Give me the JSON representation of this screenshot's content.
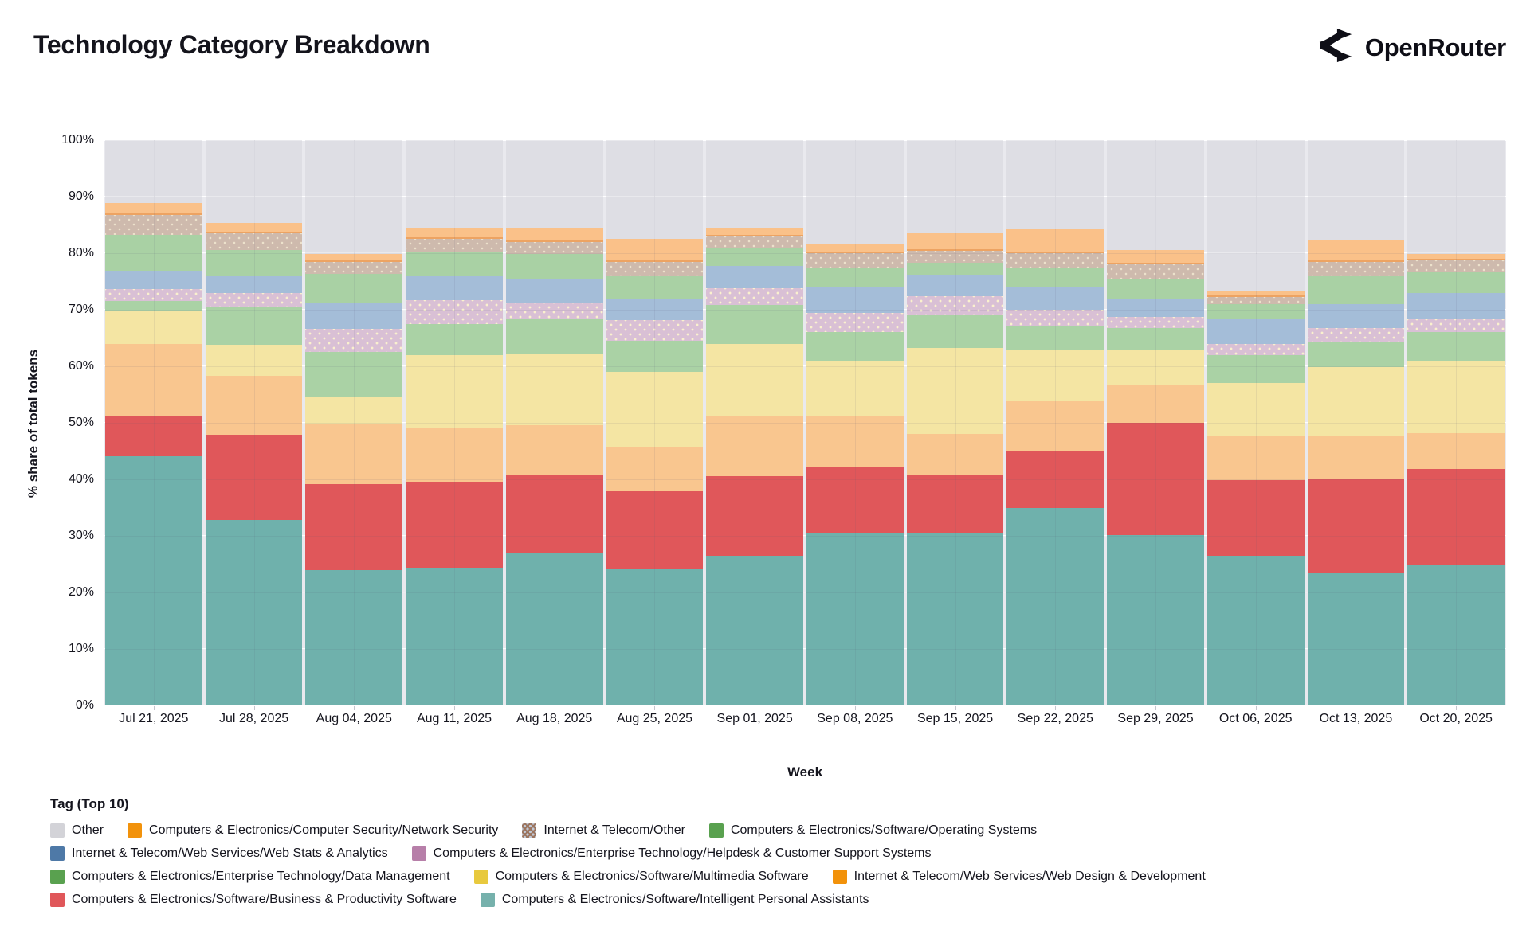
{
  "header": {
    "title": "Technology Category Breakdown",
    "brand": "OpenRouter",
    "brand_icon": "openrouter-fork-arrows",
    "brand_color": "#0e0e16"
  },
  "legend": {
    "title": "Tag (Top 10)"
  },
  "chart_data": {
    "type": "bar",
    "stacked": true,
    "orientation": "vertical",
    "title": "Technology Category Breakdown",
    "xlabel": "Week",
    "ylabel": "% share of total tokens",
    "ylim": [
      0,
      100
    ],
    "yticks": [
      "0%",
      "10%",
      "20%",
      "30%",
      "40%",
      "50%",
      "60%",
      "70%",
      "80%",
      "90%",
      "100%"
    ],
    "grid": true,
    "plot_bg": "#e9e9ee",
    "legend_position": "bottom",
    "categories": [
      "Jul 21, 2025",
      "Jul 28, 2025",
      "Aug 04, 2025",
      "Aug 11, 2025",
      "Aug 18, 2025",
      "Aug 25, 2025",
      "Sep 01, 2025",
      "Sep 08, 2025",
      "Sep 15, 2025",
      "Sep 22, 2025",
      "Sep 29, 2025",
      "Oct 06, 2025",
      "Oct 13, 2025",
      "Oct 20, 2025"
    ],
    "series_note": "series listed bottom-to-top of stack; legend displays them in reverse order; values are % share of total tokens",
    "series": [
      {
        "label": "Computers & Electronics/Software/Intelligent Personal Assistants",
        "bar_color": "#6fb1ac",
        "legend_color": "#76b1ac",
        "pattern": "none",
        "values": [
          44.1,
          32.8,
          24.0,
          24.4,
          27.0,
          24.2,
          26.5,
          30.6,
          30.6,
          35.0,
          30.1,
          26.5,
          23.5,
          24.9
        ]
      },
      {
        "label": "Computers & Electronics/Software/Business & Productivity Software",
        "bar_color": "#e0575a",
        "legend_color": "#e0575a",
        "pattern": "none",
        "values": [
          7.0,
          15.1,
          15.2,
          15.2,
          13.8,
          13.7,
          14.1,
          11.7,
          10.2,
          10.1,
          19.9,
          13.4,
          16.6,
          16.9
        ]
      },
      {
        "label": "Internet & Telecom/Web Services/Web Design & Development",
        "bar_color": "#f9c68f",
        "legend_color": "#f2920b",
        "pattern": "none",
        "values": [
          12.9,
          10.4,
          10.7,
          9.4,
          8.8,
          7.9,
          10.7,
          9.0,
          7.2,
          8.9,
          6.7,
          7.7,
          7.7,
          6.4
        ]
      },
      {
        "label": "Computers & Electronics/Software/Multimedia Software",
        "bar_color": "#f4e5a3",
        "legend_color": "#e8c93e",
        "pattern": "none",
        "values": [
          5.9,
          5.5,
          4.8,
          13.0,
          12.6,
          13.2,
          12.7,
          9.7,
          15.2,
          9.0,
          6.3,
          9.4,
          12.0,
          12.8
        ]
      },
      {
        "label": "Computers & Electronics/Enterprise Technology/Data Management",
        "bar_color": "#aad2a5",
        "legend_color": "#59a14f",
        "pattern": "none",
        "values": [
          1.6,
          6.7,
          7.8,
          5.5,
          6.3,
          5.5,
          6.8,
          5.0,
          6.0,
          4.0,
          3.8,
          5.0,
          4.4,
          5.0
        ]
      },
      {
        "label": "Computers & Electronics/Enterprise Technology/Helpdesk & Customer Support Systems",
        "bar_color": "#d9c0d5",
        "legend_color": "#b77fa9",
        "pattern": "dots",
        "values": [
          2.2,
          2.5,
          4.1,
          4.2,
          2.8,
          3.7,
          3.0,
          3.5,
          3.2,
          3.0,
          2.0,
          2.0,
          2.6,
          2.3
        ]
      },
      {
        "label": "Internet & Telecom/Web Services/Web Stats & Analytics",
        "bar_color": "#a4bdd8",
        "legend_color": "#4e79a7",
        "pattern": "none",
        "values": [
          3.2,
          3.0,
          4.7,
          4.3,
          4.2,
          3.8,
          4.0,
          4.5,
          3.8,
          4.0,
          3.2,
          4.5,
          4.2,
          4.7
        ]
      },
      {
        "label": "Computers & Electronics/Software/Operating Systems",
        "bar_color": "#a9d1a4",
        "legend_color": "#59a14f",
        "pattern": "none",
        "values": [
          6.3,
          4.5,
          5.0,
          4.3,
          4.3,
          4.0,
          3.2,
          3.5,
          2.1,
          3.5,
          3.5,
          2.5,
          5.0,
          3.8
        ]
      },
      {
        "label": "Internet & Telecom/Other",
        "bar_color": "#cebaad",
        "legend_color": "#9c755f",
        "pattern": "dots-soft",
        "values": [
          3.6,
          3.0,
          2.1,
          2.2,
          2.2,
          2.5,
          2.0,
          2.5,
          2.1,
          2.5,
          2.5,
          1.2,
          2.5,
          2.0
        ]
      },
      {
        "label": "Computers & Electronics/Computer Security/Network Security",
        "bar_color": "#fac189",
        "legend_color": "#f2920b",
        "pattern": "none",
        "edge_bottom": "#eda362",
        "values": [
          2.1,
          1.8,
          1.4,
          2.0,
          2.5,
          4.0,
          1.5,
          1.5,
          3.3,
          4.3,
          2.5,
          1.1,
          3.8,
          1.0
        ]
      },
      {
        "label": "Other",
        "bar_color": "rgba(208,208,216,0.45)",
        "legend_color": "#d3d3d8",
        "pattern": "none",
        "values": [
          11.1,
          14.7,
          20.2,
          15.5,
          15.5,
          17.5,
          15.5,
          18.5,
          16.3,
          15.7,
          19.5,
          26.7,
          17.7,
          20.2
        ]
      }
    ]
  }
}
